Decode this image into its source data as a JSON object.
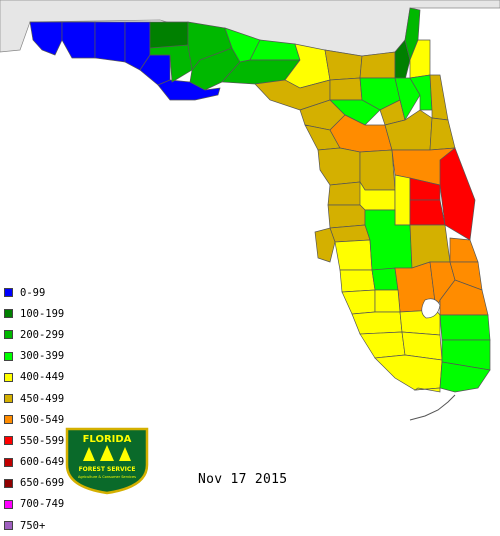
{
  "map": {
    "date": "Nov 17 2015",
    "background_land": "#e6e6e6",
    "water": "#ffffff"
  },
  "legend": {
    "items": [
      {
        "label": "0-99",
        "color": "#0000ff"
      },
      {
        "label": "100-199",
        "color": "#008000"
      },
      {
        "label": "200-299",
        "color": "#00b800"
      },
      {
        "label": "300-399",
        "color": "#00ff00"
      },
      {
        "label": "400-449",
        "color": "#ffff00"
      },
      {
        "label": "450-499",
        "color": "#d4b000"
      },
      {
        "label": "500-549",
        "color": "#ff8c00"
      },
      {
        "label": "550-599",
        "color": "#ff0000"
      },
      {
        "label": "600-649",
        "color": "#c00000"
      },
      {
        "label": "650-699",
        "color": "#900000"
      },
      {
        "label": "700-749",
        "color": "#ff00ff"
      },
      {
        "label": "750+",
        "color": "#a060c0"
      }
    ]
  },
  "logo": {
    "line1": "FLORIDA",
    "line2": "FOREST SERVICE",
    "line3": "Agriculture & Consumer Services"
  }
}
